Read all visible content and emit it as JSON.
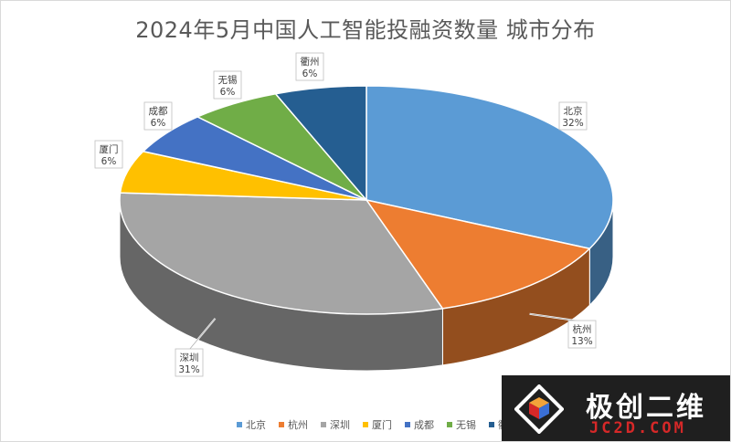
{
  "chart_data": {
    "type": "pie",
    "title": "2024年5月中国人工智能投融资数量 城市分布",
    "categories": [
      "北京",
      "杭州",
      "深圳",
      "厦门",
      "成都",
      "无锡",
      "衢州"
    ],
    "values": [
      32,
      13,
      31,
      6,
      6,
      6,
      6
    ],
    "value_labels": [
      "32%",
      "13%",
      "31%",
      "6%",
      "6%",
      "6%",
      "6%"
    ],
    "colors": [
      "#5B9BD5",
      "#ED7D31",
      "#A5A5A5",
      "#FFC000",
      "#4472C4",
      "#70AD47",
      "#255E91"
    ],
    "legend_position": "bottom",
    "style": "3d-pie"
  },
  "watermark": {
    "text": "极创二维",
    "url_text": "JC2D.COM"
  }
}
